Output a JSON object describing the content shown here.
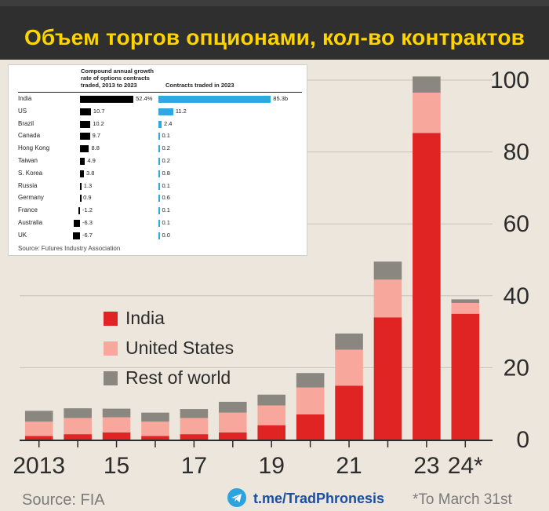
{
  "title": "Объем торгов опционами, кол-во контрактов",
  "chart_data": [
    {
      "type": "bar",
      "stacked": true,
      "categories": [
        "2013",
        "2014",
        "2015",
        "2016",
        "2017",
        "2018",
        "2019",
        "2020",
        "2021",
        "2022",
        "2023",
        "2024*"
      ],
      "x_tick_labels": [
        "2013",
        "15",
        "17",
        "19",
        "21",
        "23",
        "24*"
      ],
      "x_tick_categories": [
        "2013",
        "2015",
        "2017",
        "2019",
        "2021",
        "2023",
        "2024*"
      ],
      "y_ticks": [
        0,
        20,
        40,
        60,
        80,
        100
      ],
      "ylim": [
        0,
        105
      ],
      "series": [
        {
          "name": "India",
          "color": "#e02424",
          "values": [
            1.0,
            1.5,
            2.0,
            1.0,
            1.5,
            2.0,
            4.0,
            7.0,
            15.0,
            34.0,
            85.3,
            35.0
          ]
        },
        {
          "name": "United States",
          "color": "#f7a79b",
          "values": [
            4.0,
            4.5,
            4.2,
            4.0,
            4.5,
            5.5,
            5.5,
            7.5,
            10.0,
            10.5,
            11.2,
            3.0
          ]
        },
        {
          "name": "Rest of world",
          "color": "#8a8680",
          "values": [
            3.0,
            2.7,
            2.4,
            2.5,
            2.5,
            3.0,
            3.0,
            4.0,
            4.5,
            5.0,
            4.5,
            1.0
          ]
        }
      ],
      "legend": [
        "India",
        "United States",
        "Rest of world"
      ],
      "source": "Source: FIA",
      "note": "*To March 31st"
    },
    {
      "type": "table",
      "header_cagr": [
        "Compound annual growth",
        "rate of options contracts",
        "traded, 2013 to 2023"
      ],
      "header_contracts": "Contracts traded in 2023",
      "rows": [
        {
          "country": "India",
          "cagr": 52.4,
          "cagr_label": "52.4%",
          "contracts": 85.3,
          "contracts_label": "85.3b"
        },
        {
          "country": "US",
          "cagr": 10.7,
          "cagr_label": "10.7",
          "contracts": 11.2,
          "contracts_label": "11.2"
        },
        {
          "country": "Brazil",
          "cagr": 10.2,
          "cagr_label": "10.2",
          "contracts": 2.4,
          "contracts_label": "2.4"
        },
        {
          "country": "Canada",
          "cagr": 9.7,
          "cagr_label": "9.7",
          "contracts": 0.1,
          "contracts_label": "0.1"
        },
        {
          "country": "Hong Kong",
          "cagr": 8.8,
          "cagr_label": "8.8",
          "contracts": 0.2,
          "contracts_label": "0.2"
        },
        {
          "country": "Taiwan",
          "cagr": 4.9,
          "cagr_label": "4.9",
          "contracts": 0.2,
          "contracts_label": "0.2"
        },
        {
          "country": "S. Korea",
          "cagr": 3.8,
          "cagr_label": "3.8",
          "contracts": 0.8,
          "contracts_label": "0.8"
        },
        {
          "country": "Russia",
          "cagr": 1.3,
          "cagr_label": "1.3",
          "contracts": 0.1,
          "contracts_label": "0.1"
        },
        {
          "country": "Germany",
          "cagr": 0.9,
          "cagr_label": "0.9",
          "contracts": 0.6,
          "contracts_label": "0.6"
        },
        {
          "country": "France",
          "cagr": -1.2,
          "cagr_label": "-1.2",
          "contracts": 0.1,
          "contracts_label": "0.1"
        },
        {
          "country": "Australia",
          "cagr": -6.3,
          "cagr_label": "-6.3",
          "contracts": 0.1,
          "contracts_label": "0.1"
        },
        {
          "country": "UK",
          "cagr": -6.7,
          "cagr_label": "-6.7",
          "contracts": 0.0,
          "contracts_label": "0.0"
        }
      ],
      "source": "Source: Futures Industry Association"
    }
  ],
  "footer": {
    "telegram_icon": "telegram-icon",
    "link": "t.me/TradPhronesis"
  }
}
